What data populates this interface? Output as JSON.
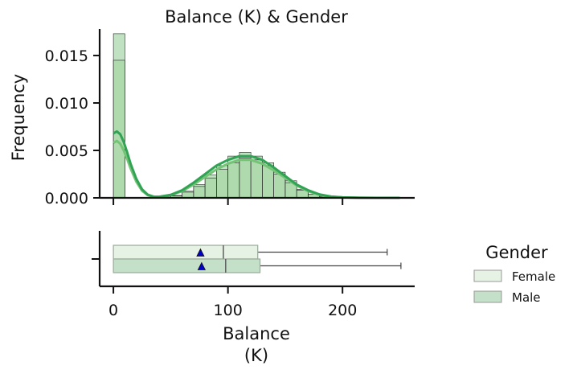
{
  "chart_data": {
    "type": "histogram-with-boxplot",
    "title": "Balance (K) & Gender",
    "xlabel_line1": "Balance",
    "xlabel_line2": "(K)",
    "ylabel": "Frequency",
    "xlim": [
      -12,
      263
    ],
    "ylim": [
      0,
      0.0178
    ],
    "x_ticks": [
      0,
      100,
      200
    ],
    "x_tick_labels": [
      "0",
      "100",
      "200"
    ],
    "y_ticks": [
      0.0,
      0.005,
      0.01,
      0.015
    ],
    "y_tick_labels": [
      "0.000",
      "0.005",
      "0.010",
      "0.015"
    ],
    "bin_width": 10,
    "bins_left": [
      0,
      10,
      20,
      30,
      40,
      50,
      60,
      70,
      80,
      90,
      100,
      110,
      120,
      130,
      140,
      150,
      160,
      170,
      180,
      190,
      200,
      210,
      220,
      230,
      240
    ],
    "series": [
      {
        "name": "Female",
        "color": "#9fd49d",
        "line_color": "#74c476",
        "density": [
          0.0145,
          0.0,
          0.0,
          3e-05,
          7e-05,
          0.0002,
          0.0006,
          0.0012,
          0.0021,
          0.003,
          0.0037,
          0.0042,
          0.004,
          0.0034,
          0.0025,
          0.0016,
          0.0008,
          0.0004,
          0.00015,
          6e-05,
          3e-05,
          1e-05,
          0.0,
          0.0,
          0.0
        ],
        "box": {
          "min": 0,
          "q1": 0,
          "median": 96,
          "q3": 126,
          "max": 239,
          "mean": 76
        }
      },
      {
        "name": "Male",
        "color": "#8ccb92",
        "line_color": "#31a354",
        "density": [
          0.0173,
          0.0,
          0.0,
          3e-05,
          8e-05,
          0.00025,
          0.0007,
          0.0014,
          0.0024,
          0.0034,
          0.0044,
          0.0048,
          0.0044,
          0.0037,
          0.0027,
          0.0018,
          0.0009,
          0.0004,
          0.00018,
          7e-05,
          3e-05,
          1e-05,
          0.0,
          0.0,
          5e-06
        ],
        "box": {
          "min": 0,
          "q1": 0,
          "median": 98,
          "q3": 128,
          "max": 251,
          "mean": 77
        }
      }
    ],
    "kde": [
      {
        "name": "Female",
        "color": "#74c476",
        "x": [
          0,
          3,
          6,
          9,
          12,
          15,
          20,
          25,
          30,
          35,
          40,
          50,
          60,
          70,
          80,
          90,
          100,
          110,
          120,
          130,
          140,
          150,
          160,
          170,
          180,
          190,
          200,
          215,
          230,
          250
        ],
        "y": [
          0.0058,
          0.006,
          0.0057,
          0.005,
          0.0041,
          0.0031,
          0.0017,
          0.00075,
          0.00028,
          0.00012,
          0.00011,
          0.00028,
          0.0007,
          0.0014,
          0.0022,
          0.003,
          0.0036,
          0.004,
          0.004,
          0.0036,
          0.0029,
          0.0021,
          0.0013,
          0.0007,
          0.00032,
          0.00013,
          5e-05,
          1e-05,
          0.0,
          0.0
        ]
      },
      {
        "name": "Male",
        "color": "#31a354",
        "x": [
          0,
          3,
          6,
          9,
          12,
          15,
          20,
          25,
          30,
          35,
          40,
          50,
          60,
          70,
          80,
          90,
          100,
          110,
          120,
          130,
          140,
          150,
          160,
          170,
          180,
          190,
          200,
          215,
          230,
          250
        ],
        "y": [
          0.0068,
          0.007,
          0.0067,
          0.0059,
          0.0048,
          0.0036,
          0.002,
          0.0009,
          0.00033,
          0.00013,
          0.00012,
          0.00032,
          0.0008,
          0.0016,
          0.0025,
          0.0034,
          0.004,
          0.0044,
          0.0044,
          0.004,
          0.0032,
          0.0023,
          0.0014,
          0.0008,
          0.00036,
          0.00014,
          5e-05,
          1e-05,
          0.0,
          0.0
        ]
      }
    ],
    "box_colors": {
      "Female": "#e6f2e4",
      "Male": "#c4e0c8"
    },
    "mean_marker_color": "#0000c8",
    "legend": {
      "title": "Gender",
      "placement": "right",
      "entries": [
        {
          "label": "Female",
          "color": "#e6f2e4"
        },
        {
          "label": "Male",
          "color": "#c4e0c8"
        }
      ]
    },
    "grid": false
  }
}
